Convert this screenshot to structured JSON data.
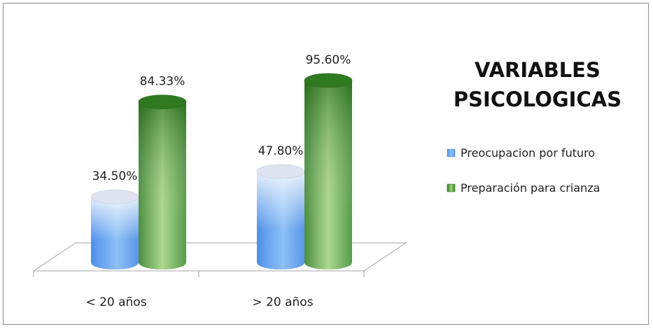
{
  "chart_data": {
    "type": "bar",
    "title": "VARIABLES PSICOLOGICAS",
    "categories": [
      "< 20 años",
      "> 20 años"
    ],
    "series": [
      {
        "name": "Preocupacion por futuro",
        "values": [
          34.5,
          47.8
        ],
        "labels": [
          "34.50%",
          "47.80%"
        ],
        "color": "#6fa8f2"
      },
      {
        "name": "Preparación para crianza",
        "values": [
          84.33,
          95.6
        ],
        "labels": [
          "84.33%",
          "95.60%"
        ],
        "color": "#3f8a2b"
      }
    ],
    "ylim": [
      0,
      100
    ],
    "grid": false,
    "legend": "right"
  }
}
